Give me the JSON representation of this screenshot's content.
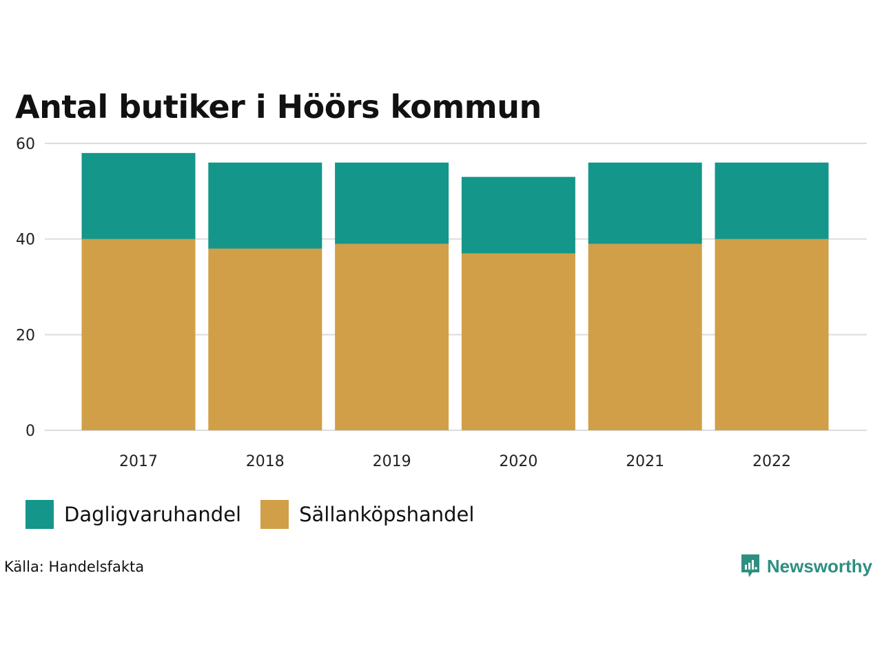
{
  "chart_data": {
    "type": "bar",
    "stacked": true,
    "title": "Antal butiker i Höörs kommun",
    "categories": [
      "2017",
      "2018",
      "2019",
      "2020",
      "2021",
      "2022"
    ],
    "series": [
      {
        "name": "Sällanköpshandel",
        "color": "#D19F47",
        "values": [
          40,
          38,
          39,
          37,
          39,
          40
        ]
      },
      {
        "name": "Dagligvaruhandel",
        "color": "#14968A",
        "values": [
          18,
          18,
          17,
          16,
          17,
          16
        ]
      }
    ],
    "yticks": [
      "0",
      "20",
      "40",
      "60"
    ],
    "ylim": [
      0,
      60
    ],
    "xlabel": "",
    "ylabel": "",
    "grid": true,
    "legend_position": "bottom-left"
  },
  "legend": {
    "items": [
      {
        "label": "Dagligvaruhandel",
        "color": "#14968A"
      },
      {
        "label": "Sällanköpshandel",
        "color": "#D19F47"
      }
    ]
  },
  "source": "Källa: Handelsfakta",
  "brand": {
    "name": "Newsworthy",
    "color": "#2E8F80"
  }
}
